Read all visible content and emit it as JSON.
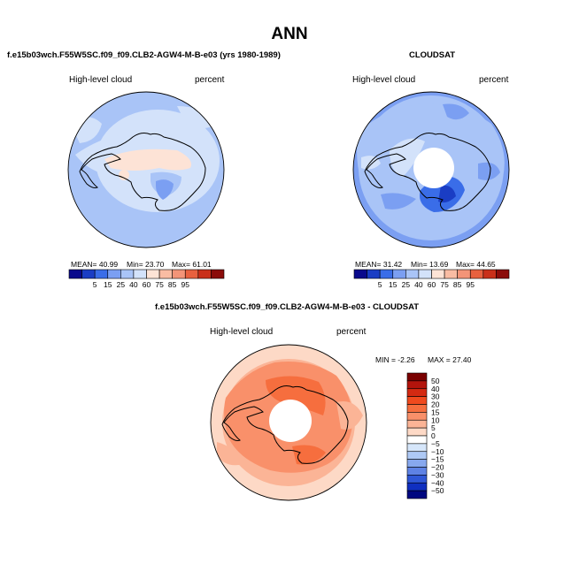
{
  "title": "ANN",
  "panels": [
    {
      "title": "f.e15b03wch.F55W5SC.f09_f09.CLB2-AGW4-M-B-e03 (yrs 1980-1989)",
      "field": "High-level cloud",
      "units": "percent",
      "stats": {
        "mean": "MEAN=  40.99",
        "min": "Min=  23.70",
        "max": "Max=  61.01"
      }
    },
    {
      "title": "CLOUDSAT",
      "field": "High-level cloud",
      "units": "percent",
      "stats": {
        "mean": "MEAN=  31.42",
        "min": "Min=  13.69",
        "max": "Max=  44.65"
      }
    },
    {
      "title": "f.e15b03wch.F55W5SC.f09_f09.CLB2-AGW4-M-B-e03 - CLOUDSAT",
      "field": "High-level cloud",
      "units": "percent",
      "stats": {
        "min": "MIN =  -2.26",
        "max": "MAX =  27.40"
      }
    }
  ],
  "chart_data": [
    {
      "type": "heatmap",
      "projection": "south-polar-stereographic",
      "title": "f.e15b03wch.F55W5SC.f09_f09.CLB2-AGW4-M-B-e03 (yrs 1980-1989)",
      "variable": "High-level cloud",
      "units": "percent",
      "mean": 40.99,
      "min": 23.7,
      "max": 61.01,
      "colorbar_levels": [
        5,
        15,
        25,
        40,
        60,
        75,
        85,
        95
      ],
      "colorbar_colors": [
        "#0a0a8c",
        "#1a3dc4",
        "#3a6de8",
        "#7b9ff2",
        "#a9c4f7",
        "#d3e2fa",
        "#fde3d6",
        "#f9bca3",
        "#f39478",
        "#e8613f",
        "#c9301a",
        "#8b0c0a"
      ]
    },
    {
      "type": "heatmap",
      "projection": "south-polar-stereographic",
      "title": "CLOUDSAT",
      "variable": "High-level cloud",
      "units": "percent",
      "mean": 31.42,
      "min": 13.69,
      "max": 44.65,
      "colorbar_levels": [
        5,
        15,
        25,
        40,
        60,
        75,
        85,
        95
      ],
      "colorbar_colors": [
        "#0a0a8c",
        "#1a3dc4",
        "#3a6de8",
        "#7b9ff2",
        "#a9c4f7",
        "#d3e2fa",
        "#fde3d6",
        "#f9bca3",
        "#f39478",
        "#e8613f",
        "#c9301a",
        "#8b0c0a"
      ]
    },
    {
      "type": "heatmap",
      "projection": "south-polar-stereographic",
      "title": "f.e15b03wch.F55W5SC.f09_f09.CLB2-AGW4-M-B-e03 - CLOUDSAT",
      "variable": "High-level cloud",
      "units": "percent",
      "min": -2.26,
      "max": 27.4,
      "colorbar_levels": [
        50,
        40,
        30,
        20,
        15,
        10,
        5,
        0,
        -5,
        -10,
        -15,
        -20,
        -30,
        -40,
        -50
      ],
      "colorbar_colors": [
        "#7a0000",
        "#b3140c",
        "#d42a12",
        "#f04a1e",
        "#f66e3e",
        "#f9906a",
        "#fbb496",
        "#fdd9c6",
        "#ffffff",
        "#d6e6fa",
        "#aec9f5",
        "#87a8ee",
        "#5e82e4",
        "#2f57d6",
        "#0f2fc0",
        "#000880"
      ]
    }
  ],
  "colors": {
    "seq": [
      "#0a0a8c",
      "#1a3dc4",
      "#3a6de8",
      "#7b9ff2",
      "#a9c4f7",
      "#d3e2fa",
      "#fde3d6",
      "#f9bca3",
      "#f39478",
      "#e8613f",
      "#c9301a",
      "#8b0c0a"
    ],
    "diff": [
      "#7a0000",
      "#b3140c",
      "#d42a12",
      "#f04a1e",
      "#f66e3e",
      "#f9906a",
      "#fbb496",
      "#fdd9c6",
      "#ffffff",
      "#d6e6fa",
      "#aec9f5",
      "#87a8ee",
      "#5e82e4",
      "#2f57d6",
      "#0f2fc0",
      "#000880"
    ]
  }
}
